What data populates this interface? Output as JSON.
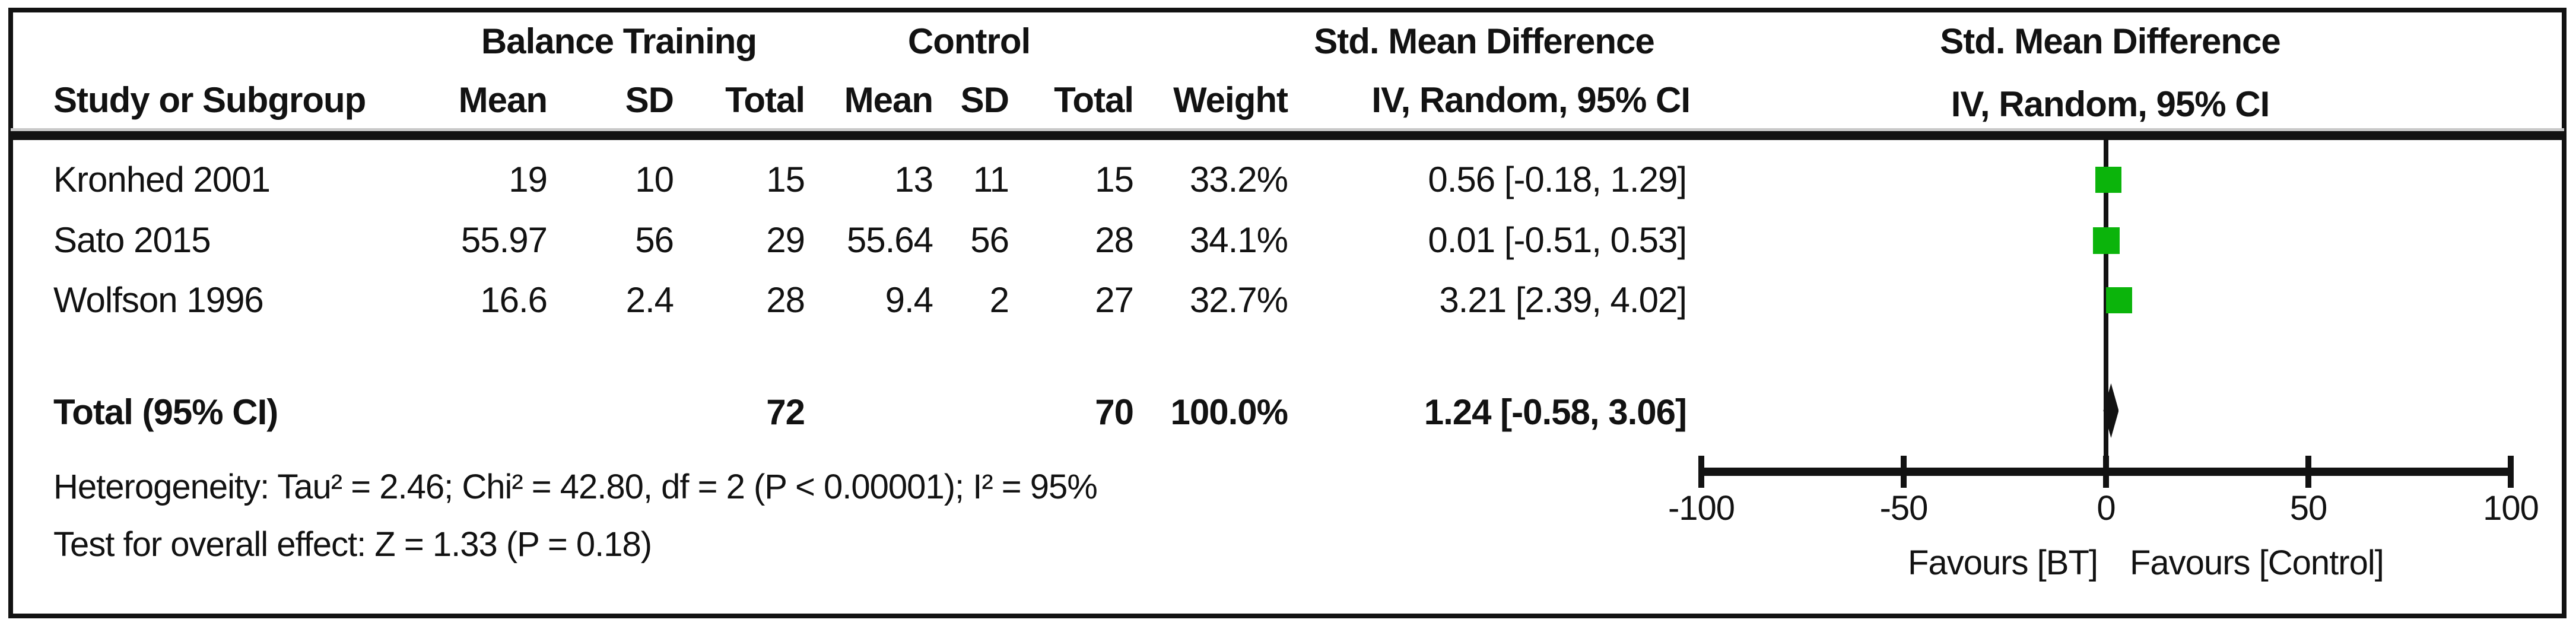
{
  "header": {
    "group_bt": "Balance Training",
    "group_control": "Control",
    "smd_col_line1": "Std. Mean Difference",
    "smd_col_line2": "IV, Random, 95% CI",
    "plot_col_line1": "Std. Mean Difference",
    "plot_col_line2": "IV, Random, 95% CI",
    "study_col": "Study or Subgroup",
    "mean_col": "Mean",
    "sd_col": "SD",
    "total_col": "Total",
    "weight_col": "Weight"
  },
  "studies": [
    {
      "name": "Kronhed 2001",
      "bt_mean": "19",
      "bt_sd": "10",
      "bt_total": "15",
      "c_mean": "13",
      "c_sd": "11",
      "c_total": "15",
      "weight": "33.2%",
      "smd_ci": "0.56 [-0.18, 1.29]"
    },
    {
      "name": "Sato 2015",
      "bt_mean": "55.97",
      "bt_sd": "56",
      "bt_total": "29",
      "c_mean": "55.64",
      "c_sd": "56",
      "c_total": "28",
      "weight": "34.1%",
      "smd_ci": "0.01 [-0.51, 0.53]"
    },
    {
      "name": "Wolfson 1996",
      "bt_mean": "16.6",
      "bt_sd": "2.4",
      "bt_total": "28",
      "c_mean": "9.4",
      "c_sd": "2",
      "c_total": "27",
      "weight": "32.7%",
      "smd_ci": "3.21 [2.39, 4.02]"
    }
  ],
  "total_row": {
    "label": "Total (95% CI)",
    "bt_total": "72",
    "c_total": "70",
    "weight": "100.0%",
    "smd_ci": "1.24 [-0.58, 3.06]"
  },
  "footer": {
    "heterogeneity": "Heterogeneity: Tau² = 2.46; Chi² = 42.80, df = 2 (P < 0.00001); I² = 95%",
    "overall_effect": "Test for overall effect: Z = 1.33 (P = 0.18)"
  },
  "chart_data": {
    "type": "forest",
    "effect_measure": "Std. Mean Difference",
    "model": "IV, Random, 95% CI",
    "x_axis": {
      "min": -100,
      "max": 100,
      "ticks": [
        -100,
        -50,
        0,
        50,
        100
      ],
      "label_left": "Favours [BT]",
      "label_right": "Favours [Control]"
    },
    "marker_color": "#0bb40b",
    "line_color": "#121212",
    "points": [
      {
        "study": "Kronhed 2001",
        "smd": 0.56,
        "ci": [
          -0.18,
          1.29
        ],
        "weight_pct": 33.2
      },
      {
        "study": "Sato 2015",
        "smd": 0.01,
        "ci": [
          -0.51,
          0.53
        ],
        "weight_pct": 34.1
      },
      {
        "study": "Wolfson 1996",
        "smd": 3.21,
        "ci": [
          2.39,
          4.02
        ],
        "weight_pct": 32.7
      }
    ],
    "total_diamond": {
      "smd": 1.24,
      "ci": [
        -0.58,
        3.06
      ]
    }
  }
}
